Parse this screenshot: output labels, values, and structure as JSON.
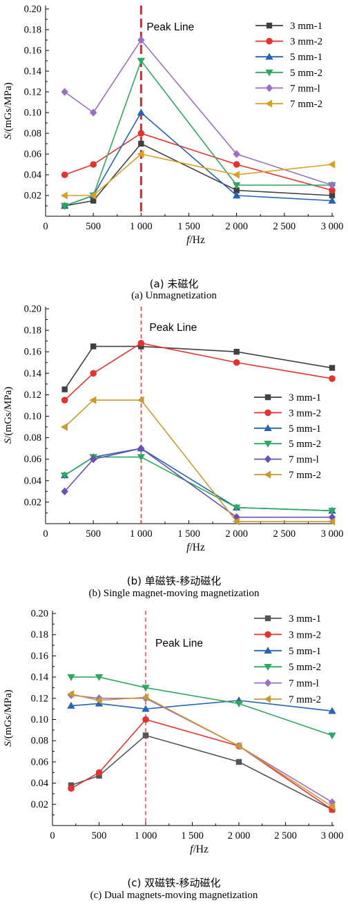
{
  "chart_data": [
    {
      "type": "line",
      "caption_cn": "(a) 未磁化",
      "caption_en": "(a) Unmagnetization",
      "xlabel_italic": "f",
      "xlabel_unit": "/Hz",
      "ylabel_italic": "S",
      "ylabel_unit": "/(mGs/MPa)",
      "x_tick_labels": [
        "0",
        "500",
        "1 000",
        "1 500",
        "2 000",
        "2 500",
        "3 000"
      ],
      "y_tick_labels": [
        "0.02",
        "0.04",
        "0.06",
        "0.08",
        "0.10",
        "0.12",
        "0.14",
        "0.16",
        "0.18",
        "0.20"
      ],
      "xlim": [
        0,
        3000
      ],
      "ylim": [
        0,
        0.2
      ],
      "grid": false,
      "legend_position": "top-right",
      "peak_line": {
        "x": 1000,
        "label": "Peak Line",
        "style": "bold-dashed",
        "color": "#e8202a"
      },
      "x": [
        200,
        500,
        1000,
        2000,
        3000
      ],
      "series": [
        {
          "name": "3 mm-1",
          "marker": "square",
          "color": "#404040",
          "values": [
            0.01,
            0.015,
            0.07,
            0.025,
            0.02
          ]
        },
        {
          "name": "3 mm-2",
          "marker": "circle",
          "color": "#e8312f",
          "values": [
            0.04,
            0.05,
            0.08,
            0.05,
            0.025
          ]
        },
        {
          "name": "5 mm-1",
          "marker": "triangle-up",
          "color": "#2563b4",
          "values": [
            0.01,
            0.02,
            0.1,
            0.02,
            0.015
          ]
        },
        {
          "name": "5 mm-2",
          "marker": "triangle-down",
          "color": "#2da860",
          "values": [
            0.01,
            0.02,
            0.15,
            0.03,
            0.03
          ]
        },
        {
          "name": "7 mm-l",
          "marker": "diamond",
          "color": "#9a6fc4",
          "values": [
            0.12,
            0.1,
            0.17,
            0.06,
            0.03
          ]
        },
        {
          "name": "7 mm-2",
          "marker": "triangle-left",
          "color": "#d9a021",
          "values": [
            0.02,
            0.02,
            0.06,
            0.04,
            0.05
          ]
        }
      ]
    },
    {
      "type": "line",
      "caption_cn": "(b) 单磁铁-移动磁化",
      "caption_en": "(b) Single magnet-moving magnetization",
      "xlabel_italic": "f",
      "xlabel_unit": "/Hz",
      "ylabel_italic": "S",
      "ylabel_unit": "/(mGs/MPa)",
      "x_tick_labels": [
        "0",
        "500",
        "1 000",
        "1 500",
        "2 000",
        "2 500",
        "3 000"
      ],
      "y_tick_labels": [
        "0.02",
        "0.04",
        "0.06",
        "0.08",
        "0.10",
        "0.12",
        "0.14",
        "0.16",
        "0.18",
        "0.20"
      ],
      "xlim": [
        0,
        3000
      ],
      "ylim": [
        0,
        0.2
      ],
      "grid": false,
      "legend_position": "center-right",
      "peak_line": {
        "x": 1000,
        "label": "Peak Line",
        "style": "thin-dashed",
        "color": "#e8202a"
      },
      "x": [
        200,
        500,
        1000,
        2000,
        3000
      ],
      "series": [
        {
          "name": "3 mm-1",
          "marker": "square",
          "color": "#404040",
          "values": [
            0.125,
            0.165,
            0.165,
            0.16,
            0.145
          ]
        },
        {
          "name": "3 mm-2",
          "marker": "circle",
          "color": "#e8312f",
          "values": [
            0.115,
            0.14,
            0.168,
            0.15,
            0.135
          ]
        },
        {
          "name": "5 mm-1",
          "marker": "triangle-up",
          "color": "#2563b4",
          "values": [
            0.045,
            0.062,
            0.07,
            0.015,
            0.012
          ]
        },
        {
          "name": "5 mm-2",
          "marker": "triangle-down",
          "color": "#2da860",
          "values": [
            0.045,
            0.062,
            0.062,
            0.015,
            0.012
          ]
        },
        {
          "name": "7 mm-l",
          "marker": "diamond",
          "color": "#6a4fb4",
          "values": [
            0.03,
            0.06,
            0.07,
            0.006,
            0.006
          ]
        },
        {
          "name": "7 mm-2",
          "marker": "triangle-left",
          "color": "#c99a2e",
          "values": [
            0.09,
            0.115,
            0.115,
            0.002,
            0.002
          ]
        }
      ]
    },
    {
      "type": "line",
      "caption_cn": "(c) 双磁铁-移动磁化",
      "caption_en": "(c) Dual magnets-moving magnetization",
      "xlabel_italic": "f",
      "xlabel_unit": "/Hz",
      "ylabel_italic": "S",
      "ylabel_unit": "/(mGs/MPa)",
      "x_tick_labels": [
        "0",
        "500",
        "1 000",
        "1 500",
        "2 000",
        "2 500",
        "3 000"
      ],
      "y_tick_labels": [
        "0.02",
        "0.04",
        "0.06",
        "0.08",
        "0.10",
        "0.12",
        "0.14",
        "0.16",
        "0.18",
        "0.20"
      ],
      "xlim": [
        0,
        3000
      ],
      "ylim": [
        0,
        0.2
      ],
      "grid": false,
      "legend_position": "top-right",
      "peak_line": {
        "x": 1000,
        "label": "Peak Line",
        "style": "thin-dashed",
        "color": "#e8202a"
      },
      "x": [
        200,
        500,
        1000,
        2000,
        3000
      ],
      "series": [
        {
          "name": "3 mm-1",
          "marker": "square",
          "color": "#555555",
          "values": [
            0.038,
            0.047,
            0.085,
            0.06,
            0.015
          ]
        },
        {
          "name": "3 mm-2",
          "marker": "circle",
          "color": "#e8312f",
          "values": [
            0.035,
            0.05,
            0.1,
            0.075,
            0.015
          ]
        },
        {
          "name": "5 mm-1",
          "marker": "triangle-up",
          "color": "#2563b4",
          "values": [
            0.113,
            0.115,
            0.11,
            0.118,
            0.108
          ]
        },
        {
          "name": "5 mm-2",
          "marker": "triangle-down",
          "color": "#2da860",
          "values": [
            0.14,
            0.14,
            0.13,
            0.115,
            0.085
          ]
        },
        {
          "name": "7 mm-l",
          "marker": "diamond",
          "color": "#9a6fc4",
          "values": [
            0.123,
            0.12,
            0.12,
            0.075,
            0.022
          ]
        },
        {
          "name": "7 mm-2",
          "marker": "triangle-left",
          "color": "#c99a2e",
          "values": [
            0.124,
            0.118,
            0.121,
            0.075,
            0.018
          ]
        }
      ]
    }
  ]
}
